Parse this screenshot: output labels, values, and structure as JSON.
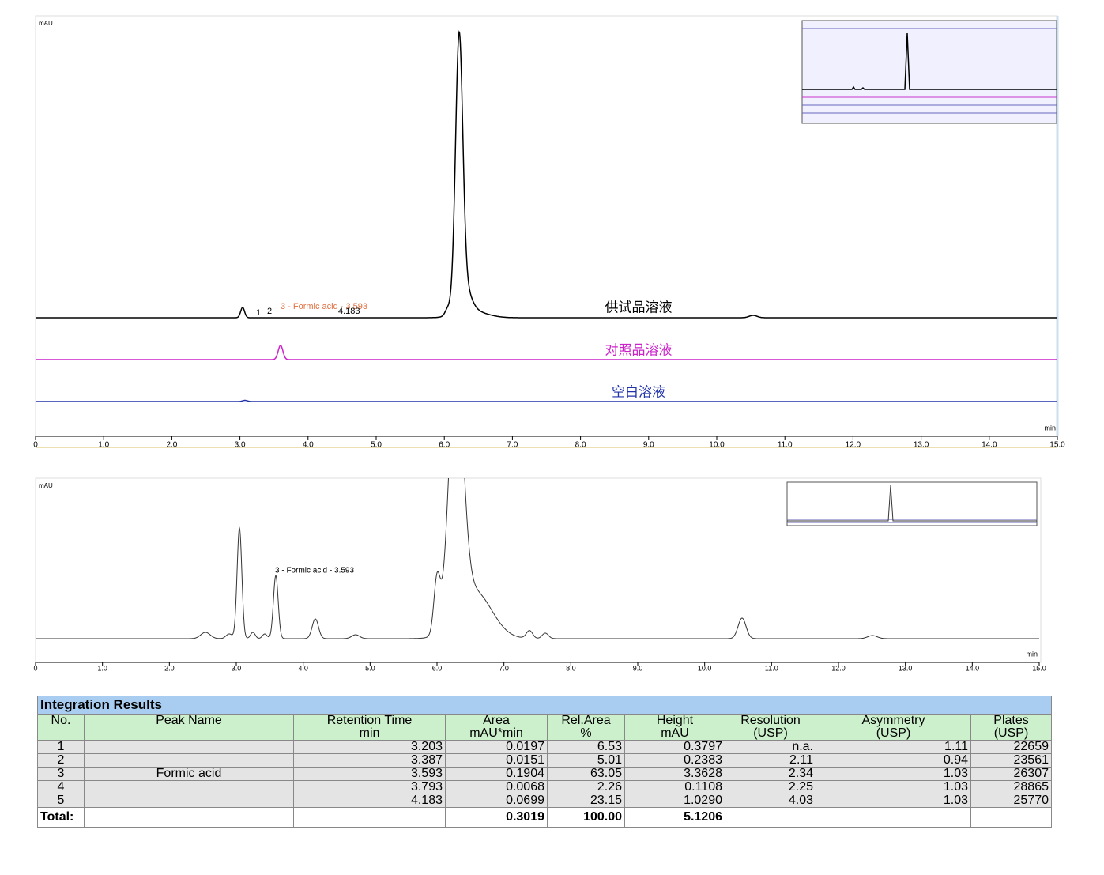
{
  "chart_data": [
    {
      "type": "line",
      "ylabel": "mAU",
      "xlabel": "min",
      "xlim": [
        0,
        15
      ],
      "xticks": [
        0,
        {
          "value": 1,
          "label": "1.0"
        },
        {
          "value": 2,
          "label": "2.0"
        },
        {
          "value": 3,
          "label": "3.0"
        },
        {
          "value": 4,
          "label": "4.0"
        },
        {
          "value": 5,
          "label": "5.0"
        },
        {
          "value": 6,
          "label": "6.0"
        },
        {
          "value": 7,
          "label": "7.0"
        },
        {
          "value": 8,
          "label": "8.0"
        },
        {
          "value": 9,
          "label": "9.0"
        },
        {
          "value": 10,
          "label": "10.0"
        },
        {
          "value": 11,
          "label": "11.0"
        },
        {
          "value": 12,
          "label": "12.0"
        },
        {
          "value": 13,
          "label": "13.0"
        },
        {
          "value": 14,
          "label": "14.0"
        },
        {
          "value": 15,
          "label": "15.0"
        }
      ],
      "trace_labels": [
        {
          "text": "供试品溶液",
          "color": "#000000"
        },
        {
          "text": "对照品溶液",
          "color": "#cc22cc"
        },
        {
          "text": "空白溶液",
          "color": "#2233aa"
        }
      ],
      "annotations": [
        {
          "text": "3 - Formic acid - 3.593",
          "color": "#e07040"
        },
        {
          "text": "1",
          "color": "#000000"
        },
        {
          "text": "2",
          "color": "#000000"
        },
        {
          "text": "4.183",
          "color": "#000000"
        }
      ]
    },
    {
      "type": "line",
      "ylabel": "mAU",
      "xlabel": "min",
      "xlim": [
        0,
        15
      ],
      "xticks": [
        0,
        {
          "value": 1,
          "label": "1.0"
        },
        {
          "value": 2,
          "label": "2.0"
        },
        {
          "value": 3,
          "label": "3.0"
        },
        {
          "value": 4,
          "label": "4.0"
        },
        {
          "value": 5,
          "label": "5.0"
        },
        {
          "value": 6,
          "label": "6.0"
        },
        {
          "value": 7,
          "label": "7.0"
        },
        {
          "value": 8,
          "label": "8.0"
        },
        {
          "value": 9,
          "label": "9.0"
        },
        {
          "value": 10,
          "label": "10.0"
        },
        {
          "value": 11,
          "label": "11.0"
        },
        {
          "value": 12,
          "label": "12.0"
        },
        {
          "value": 13,
          "label": "13.0"
        },
        {
          "value": 14,
          "label": "14.0"
        },
        {
          "value": 15,
          "label": "15.0"
        }
      ],
      "annotations": [
        {
          "text": "3 - Formic acid - 3.593",
          "color": "#000000"
        }
      ]
    }
  ],
  "table": {
    "title": "Integration Results",
    "columns": [
      [
        "No."
      ],
      [
        "Peak Name"
      ],
      [
        "Retention Time",
        "min"
      ],
      [
        "Area",
        "mAU*min"
      ],
      [
        "Rel.Area",
        "%"
      ],
      [
        "Height",
        "mAU"
      ],
      [
        "Resolution",
        "(USP)"
      ],
      [
        "Asymmetry",
        "(USP)"
      ],
      [
        "Plates",
        "(USP)"
      ]
    ],
    "rows": [
      [
        "1",
        null,
        "3.203",
        "0.0197",
        "6.53",
        "0.3797",
        "n.a.",
        "1.11",
        "22659"
      ],
      [
        "2",
        null,
        "3.387",
        "0.0151",
        "5.01",
        "0.2383",
        "2.11",
        "0.94",
        "23561"
      ],
      [
        "3",
        "Formic acid",
        "3.593",
        "0.1904",
        "63.05",
        "3.3628",
        "2.34",
        "1.03",
        "26307"
      ],
      [
        "4",
        null,
        "3.793",
        "0.0068",
        "2.26",
        "0.1108",
        "2.25",
        "1.03",
        "28865"
      ],
      [
        "5",
        null,
        "4.183",
        "0.0699",
        "23.15",
        "1.0290",
        "4.03",
        "1.03",
        "25770"
      ]
    ],
    "total": [
      "Total:",
      null,
      null,
      "0.3019",
      "100.00",
      "5.1206",
      null,
      null,
      null
    ]
  }
}
